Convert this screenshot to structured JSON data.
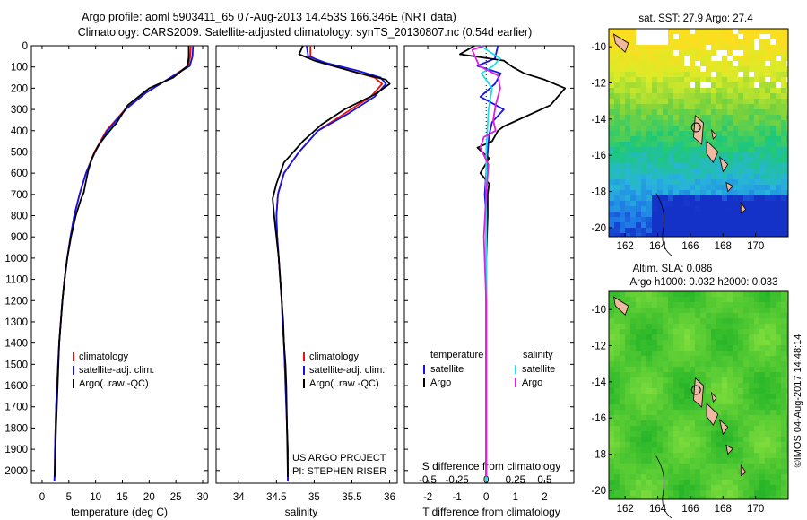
{
  "title_line1": "Argo profile: aoml 5903411_65 07-Aug-2013 14.453S 166.346E (NRT data)",
  "title_line2": "Climatology: CARS2009. Satellite-adjusted climatology: synTS_20130807.nc (0.54d earlier)",
  "colors": {
    "climatology": "#e8120c",
    "satellite": "#1414e6",
    "argo": "#000000",
    "temperature_satellite": "#1414e6",
    "salinity_satellite": "#22dde8",
    "salinity_argo": "#e020e0"
  },
  "pressure_ticks": [
    0,
    100,
    200,
    300,
    400,
    500,
    600,
    700,
    800,
    900,
    1000,
    1100,
    1200,
    1300,
    1400,
    1500,
    1600,
    1700,
    1800,
    1900,
    2000
  ],
  "chart_data": [
    {
      "type": "line",
      "id": "temperature-profile",
      "xlabel": "temperature (deg C)",
      "ylabel": "",
      "xlim": [
        -2,
        31
      ],
      "ylim": [
        2060,
        0
      ],
      "xticks": [
        "0",
        "5",
        "10",
        "15",
        "20",
        "25",
        "30"
      ],
      "xtick_values": [
        0,
        5,
        10,
        15,
        20,
        25,
        30
      ],
      "legend_placement": "lower-center",
      "series": [
        {
          "name": "climatology",
          "color_key": "climatology",
          "x": [
            27.8,
            27.7,
            27.3,
            24,
            19.5,
            15.5,
            12,
            9.8,
            8.2,
            7,
            6,
            5.3,
            4.7,
            4.2,
            3.8,
            3.5,
            3.2,
            3,
            2.8,
            2.6,
            2.5,
            2.4,
            2.35,
            2.3
          ],
          "y": [
            0,
            50,
            95,
            150,
            220,
            300,
            400,
            500,
            600,
            700,
            800,
            900,
            1000,
            1100,
            1200,
            1300,
            1400,
            1500,
            1600,
            1700,
            1800,
            1900,
            2000,
            2050
          ]
        },
        {
          "name": "satellite-adj. clim.",
          "color_key": "satellite",
          "x": [
            28.2,
            28.1,
            27.6,
            24,
            19.5,
            15.6,
            12.2,
            9.9,
            8.2,
            7,
            6,
            5.3,
            4.7,
            4.2,
            3.8,
            3.5,
            3.2,
            3,
            2.8,
            2.6,
            2.5,
            2.4,
            2.35,
            2.3
          ],
          "y": [
            0,
            50,
            95,
            150,
            220,
            300,
            400,
            500,
            600,
            700,
            800,
            900,
            1000,
            1100,
            1200,
            1300,
            1400,
            1500,
            1600,
            1700,
            1800,
            1900,
            2000,
            2050
          ]
        },
        {
          "name": "Argo(..raw -QC)",
          "color_key": "argo",
          "x": [
            27.4,
            27.4,
            27.2,
            24.5,
            20,
            16,
            14,
            12,
            10.5,
            9.3,
            8.6,
            8.1,
            7.8,
            7.3,
            6.3,
            5.4,
            4.7,
            4.2,
            3.8,
            3.2,
            2.9,
            2.6,
            2.45,
            2.35
          ],
          "y": [
            0,
            50,
            95,
            150,
            200,
            280,
            360,
            420,
            470,
            530,
            590,
            650,
            690,
            720,
            800,
            900,
            1000,
            1100,
            1200,
            1400,
            1600,
            1800,
            1950,
            2030
          ]
        }
      ]
    },
    {
      "type": "line",
      "id": "salinity-profile",
      "xlabel": "salinity",
      "ylabel": "",
      "xlim": [
        33.7,
        36.1
      ],
      "ylim": [
        2060,
        0
      ],
      "xticks": [
        "34",
        "34.5",
        "35",
        "35.5",
        "36"
      ],
      "xtick_values": [
        34,
        34.5,
        35,
        35.5,
        36
      ],
      "legend_placement": "lower-center",
      "series": [
        {
          "name": "climatology",
          "color_key": "climatology",
          "x": [
            34.95,
            34.95,
            35.1,
            35.5,
            35.8,
            35.9,
            35.75,
            35.4,
            35.05,
            34.8,
            34.6,
            34.52,
            34.5,
            34.51,
            34.53,
            34.55,
            34.57,
            34.58,
            34.6,
            34.61,
            34.62,
            34.63,
            34.64,
            34.65,
            34.65
          ],
          "y": [
            0,
            50,
            80,
            120,
            150,
            180,
            240,
            320,
            400,
            500,
            600,
            700,
            800,
            900,
            1000,
            1100,
            1200,
            1300,
            1400,
            1500,
            1600,
            1700,
            1800,
            1900,
            2050
          ]
        },
        {
          "name": "satellite-adj. clim.",
          "color_key": "satellite",
          "x": [
            34.9,
            34.92,
            35.15,
            35.6,
            35.88,
            35.95,
            35.8,
            35.45,
            35.05,
            34.8,
            34.6,
            34.52,
            34.5,
            34.51,
            34.53,
            34.55,
            34.57,
            34.58,
            34.6,
            34.61,
            34.62,
            34.63,
            34.64,
            34.65,
            34.65
          ],
          "y": [
            0,
            50,
            80,
            120,
            150,
            180,
            240,
            320,
            400,
            500,
            600,
            700,
            800,
            900,
            1000,
            1100,
            1200,
            1300,
            1400,
            1500,
            1600,
            1700,
            1800,
            1900,
            2050
          ]
        },
        {
          "name": "Argo(..raw -QC)",
          "color_key": "argo",
          "x": [
            34.85,
            34.8,
            35.0,
            35.3,
            35.6,
            35.95,
            36.0,
            35.8,
            35.4,
            35.1,
            34.85,
            34.6,
            34.5,
            34.45,
            34.47,
            34.5,
            34.53,
            34.55,
            34.57,
            34.59,
            34.6,
            34.62,
            34.63,
            34.64,
            34.65
          ],
          "y": [
            0,
            40,
            70,
            100,
            130,
            160,
            180,
            230,
            300,
            370,
            450,
            550,
            650,
            720,
            800,
            900,
            1000,
            1100,
            1200,
            1300,
            1400,
            1500,
            1600,
            1800,
            2030
          ]
        }
      ],
      "annotations": [
        "US ARGO PROJECT",
        "PI: STEPHEN RISER"
      ]
    },
    {
      "type": "line",
      "id": "difference-profile",
      "xlabel": "T difference from climatology",
      "xlabel2": "S difference from climatology",
      "xlim": [
        -2.8,
        3.0
      ],
      "ylim": [
        2060,
        0
      ],
      "xticks": [
        "-2",
        "-1",
        "0",
        "1",
        "2"
      ],
      "xtick_values": [
        -2,
        -1,
        0,
        1,
        2
      ],
      "xticks_salinity": [
        "-0.5",
        "-0.25",
        "0",
        "0.25",
        "0.5"
      ],
      "xtick_values_salinity": [
        -0.5,
        -0.25,
        0,
        0.25,
        0.5
      ],
      "legend_placement": "lower-center",
      "legend_groups": [
        "temperature",
        "salinity"
      ],
      "series": [
        {
          "name": "satellite",
          "group": "temperature",
          "color_key": "temperature_satellite",
          "x": [
            0.4,
            0.3,
            -0.3,
            0.5,
            0.3,
            -0.2,
            0.6,
            0.2,
            0.1,
            0.05,
            0,
            -0.05,
            0,
            0,
            0,
            0,
            0,
            0,
            0,
            0
          ],
          "y": [
            0,
            60,
            95,
            130,
            180,
            240,
            300,
            360,
            420,
            500,
            600,
            700,
            800,
            1000,
            1200,
            1400,
            1600,
            1800,
            1950,
            2050
          ]
        },
        {
          "name": "Argo",
          "group": "temperature",
          "color_key": "argo",
          "x": [
            -0.4,
            -0.9,
            0.6,
            0.9,
            1.3,
            2.0,
            2.7,
            2.2,
            0.6,
            0.4,
            0.2,
            -0.3,
            0.1,
            -0.2,
            0.1,
            0.05,
            0.05,
            0,
            0,
            0,
            0,
            0
          ],
          "y": [
            0,
            40,
            70,
            100,
            130,
            160,
            200,
            280,
            380,
            400,
            450,
            480,
            530,
            600,
            650,
            700,
            800,
            1000,
            1200,
            1500,
            1800,
            2030
          ]
        },
        {
          "name": "satellite",
          "group": "salinity",
          "color_key": "salinity_satellite",
          "x": [
            -0.05,
            0.12,
            0.06,
            -0.04,
            0.05,
            0.02,
            0.01,
            0,
            0,
            0,
            0,
            0,
            0,
            0
          ],
          "y": [
            0,
            60,
            95,
            130,
            200,
            300,
            400,
            500,
            700,
            1000,
            1300,
            1600,
            1900,
            2050
          ]
        },
        {
          "name": "Argo",
          "group": "salinity",
          "color_key": "salinity_argo",
          "x": [
            -0.02,
            -0.12,
            -0.06,
            0.1,
            0.12,
            0.08,
            0.06,
            0.08,
            -0.02,
            -0.05,
            0.02,
            0,
            -0.02,
            0,
            0,
            0
          ],
          "y": [
            0,
            20,
            95,
            140,
            200,
            280,
            350,
            400,
            430,
            480,
            560,
            700,
            900,
            1200,
            1500,
            2030
          ]
        }
      ]
    },
    {
      "type": "heatmap",
      "id": "sst-map",
      "title": "sat. SST: 27.9  Argo: 27.4",
      "xlim": [
        161,
        172
      ],
      "ylim": [
        -20.5,
        -9
      ],
      "xticks": [
        "162",
        "164",
        "166",
        "168",
        "170"
      ],
      "xtick_values": [
        162,
        164,
        166,
        168,
        170
      ],
      "yticks": [
        "-10",
        "-12",
        "-14",
        "-16",
        "-18",
        "-20"
      ],
      "ytick_values": [
        -10,
        -12,
        -14,
        -16,
        -18,
        -20
      ],
      "profile_marker": {
        "lon": 166.346,
        "lat": -14.453
      }
    },
    {
      "type": "heatmap",
      "id": "sla-map",
      "title": "Altim. SLA: 0.086",
      "subtitle": "Argo h1000: 0.032  h2000: 0.033",
      "xlim": [
        161,
        172
      ],
      "ylim": [
        -20.5,
        -9
      ],
      "xticks": [
        "162",
        "164",
        "166",
        "168",
        "170"
      ],
      "xtick_values": [
        162,
        164,
        166,
        168,
        170
      ],
      "yticks": [
        "-10",
        "-12",
        "-14",
        "-16",
        "-18",
        "-20"
      ],
      "ytick_values": [
        -10,
        -12,
        -14,
        -16,
        -18,
        -20
      ],
      "profile_marker": {
        "lon": 166.346,
        "lat": -14.453
      }
    }
  ],
  "credit": "©IMOS 04-Aug-2017 14:48:14"
}
